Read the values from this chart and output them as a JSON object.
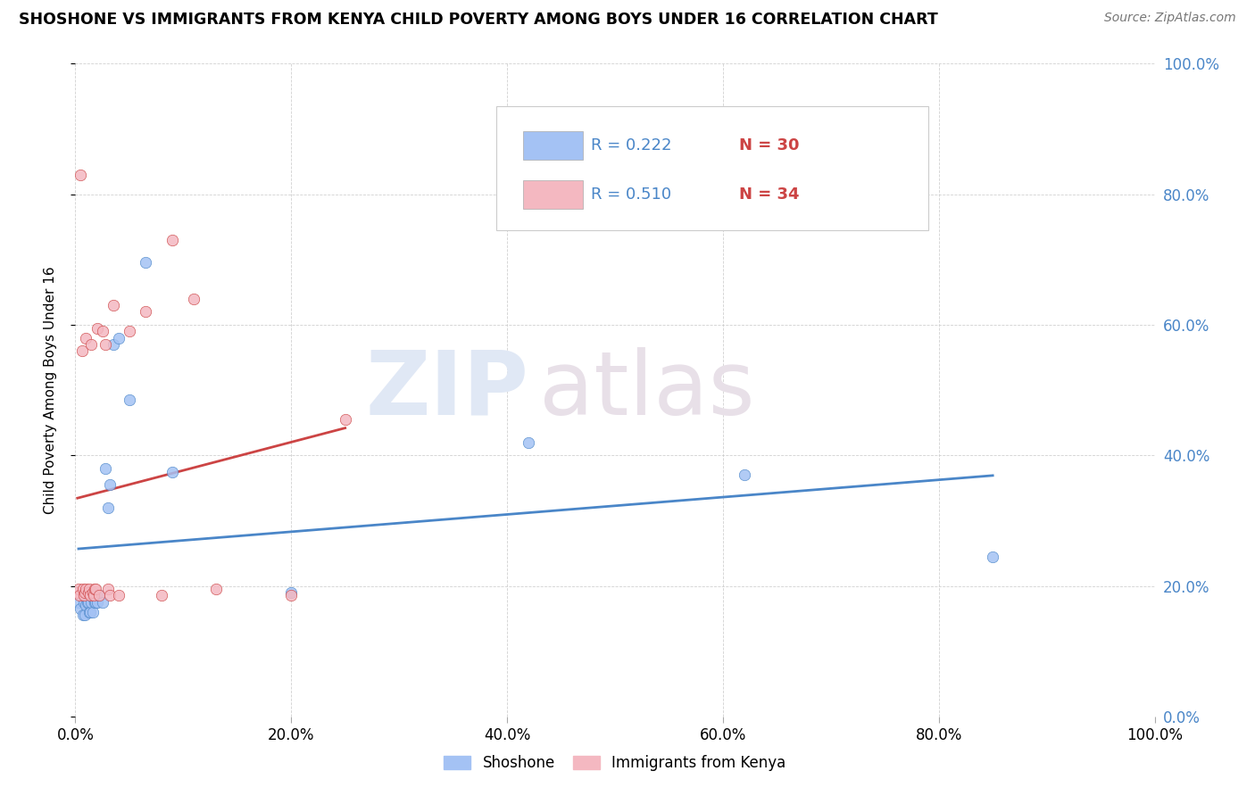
{
  "title": "SHOSHONE VS IMMIGRANTS FROM KENYA CHILD POVERTY AMONG BOYS UNDER 16 CORRELATION CHART",
  "source": "Source: ZipAtlas.com",
  "ylabel": "Child Poverty Among Boys Under 16",
  "xlim": [
    0,
    1.0
  ],
  "ylim": [
    0,
    1.0
  ],
  "xticks": [
    0.0,
    0.2,
    0.4,
    0.6,
    0.8,
    1.0
  ],
  "yticks": [
    0.0,
    0.2,
    0.4,
    0.6,
    0.8,
    1.0
  ],
  "xtick_labels": [
    "0.0%",
    "20.0%",
    "40.0%",
    "60.0%",
    "80.0%",
    "100.0%"
  ],
  "ytick_labels": [
    "0.0%",
    "20.0%",
    "40.0%",
    "60.0%",
    "80.0%",
    "100.0%"
  ],
  "shoshone_color": "#a4c2f4",
  "kenya_color": "#f4b8c1",
  "trendline_shoshone_color": "#4a86c8",
  "trendline_kenya_color": "#cc4444",
  "r_color": "#4a86c8",
  "n_color": "#cc4444",
  "watermark_zip": "ZIP",
  "watermark_atlas": "atlas",
  "legend_r_shoshone": "R = 0.222",
  "legend_n_shoshone": "N = 30",
  "legend_r_kenya": "R = 0.510",
  "legend_n_kenya": "N = 34",
  "legend_label_shoshone": "Shoshone",
  "legend_label_kenya": "Immigrants from Kenya",
  "shoshone_x": [
    0.003,
    0.005,
    0.007,
    0.008,
    0.009,
    0.01,
    0.011,
    0.012,
    0.013,
    0.014,
    0.015,
    0.016,
    0.017,
    0.018,
    0.019,
    0.02,
    0.022,
    0.025,
    0.028,
    0.03,
    0.032,
    0.035,
    0.04,
    0.05,
    0.065,
    0.09,
    0.2,
    0.42,
    0.62,
    0.85
  ],
  "shoshone_y": [
    0.175,
    0.165,
    0.155,
    0.175,
    0.155,
    0.17,
    0.175,
    0.175,
    0.16,
    0.16,
    0.175,
    0.16,
    0.18,
    0.175,
    0.175,
    0.175,
    0.185,
    0.175,
    0.38,
    0.32,
    0.355,
    0.57,
    0.58,
    0.485,
    0.695,
    0.375,
    0.19,
    0.42,
    0.37,
    0.245
  ],
  "kenya_x": [
    0.002,
    0.003,
    0.004,
    0.005,
    0.006,
    0.007,
    0.008,
    0.009,
    0.01,
    0.01,
    0.012,
    0.013,
    0.014,
    0.015,
    0.016,
    0.017,
    0.018,
    0.019,
    0.02,
    0.022,
    0.025,
    0.028,
    0.03,
    0.032,
    0.035,
    0.04,
    0.05,
    0.065,
    0.08,
    0.09,
    0.11,
    0.13,
    0.2,
    0.25
  ],
  "kenya_y": [
    0.19,
    0.195,
    0.185,
    0.83,
    0.56,
    0.195,
    0.185,
    0.19,
    0.195,
    0.58,
    0.19,
    0.195,
    0.185,
    0.57,
    0.19,
    0.185,
    0.195,
    0.195,
    0.595,
    0.185,
    0.59,
    0.57,
    0.195,
    0.185,
    0.63,
    0.185,
    0.59,
    0.62,
    0.185,
    0.73,
    0.64,
    0.195,
    0.185,
    0.455
  ]
}
